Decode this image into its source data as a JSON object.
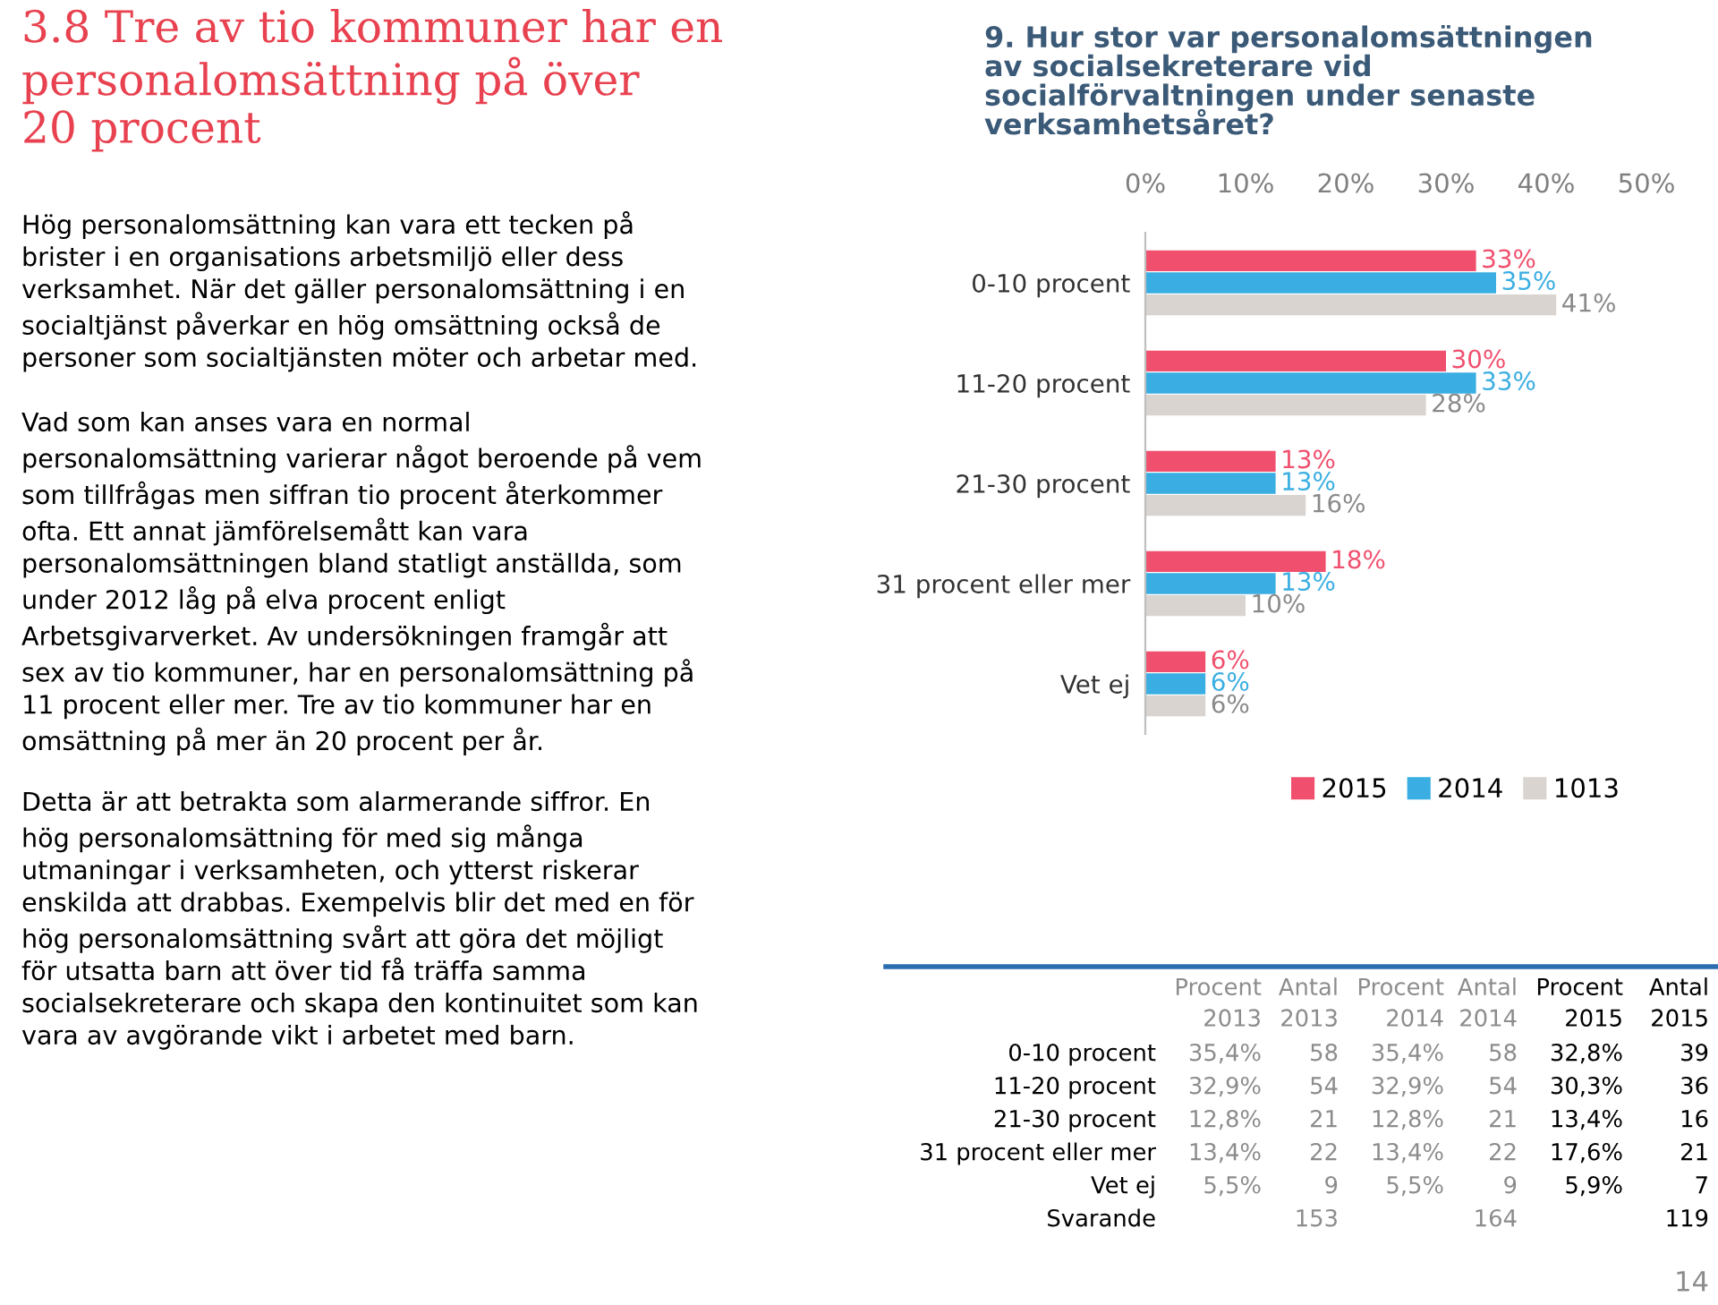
{
  "chart_data": [
    {
      "type": "other",
      "title": "3.8 Tre av tio kommuner har en\npersonalomsättning på över\n20 procent",
      "annotations": [
        "Hög personalomsättning kan vara ett tecken på\nbrister i en organisations arbetsmiljö eller dess\nverksamhet. När det gäller personalomsättning i en\nsocialtjänst påverkar en hög omsättning också de\npersoner som socialtjänsten möter och arbetar med.",
        "Vad som kan anses vara en normal\npersonalomsättning varierar något beroende på vem\nsom tillfrågas men siffran tio procent återkommer\nofta. Ett annat jämförelsemått kan vara\npersonalomsättningen bland statligt anställda, som\nunder 2012 låg på elva procent enligt\nArbetsgivarverket. Av undersökningen framgår att\nsex av tio kommuner, har en personalomsättning på\n11 procent eller mer. Tre av tio kommuner har en\nomsättning på mer än 20 procent per år.",
        "Detta är att betrakta som alarmerande siffror. En\nhög personalomsättning för med sig många\nutmaningar i verksamheten, och ytterst riskerar\nenskilda att drabbas. Exempelvis blir det med en för\nhög personalomsättning svårt att göra det möjligt\nför utsatta barn att över tid få träffa samma\nsocialsekreterare och skapa den kontinuitet som kan\nvara av avgörande vikt i arbetet med barn."
      ]
    },
    {
      "type": "bar",
      "orientation": "horizontal",
      "title": "9. Hur stor var personalomsättningen\nav socialsekreterare vid\nsocialförvaltningen under senaste\nverksamhetsåret?",
      "categories": [
        "0-10 procent",
        "11-20 procent",
        "21-30 procent",
        "31 procent eller mer",
        "Vet ej"
      ],
      "series": [
        {
          "name": "2015",
          "color": "#f0506e",
          "values": [
            33,
            30,
            13,
            18,
            6
          ],
          "value_labels": [
            "33%",
            "30%",
            "13%",
            "18%",
            "6%"
          ]
        },
        {
          "name": "2014",
          "color": "#3aaee2",
          "values": [
            35,
            33,
            13,
            13,
            6
          ],
          "value_labels": [
            "35%",
            "33%",
            "13%",
            "13%",
            "6%"
          ]
        },
        {
          "name": "1013",
          "color": "#d9d4cf",
          "values": [
            41,
            28,
            16,
            10,
            6
          ],
          "value_labels": [
            "41%",
            "28%",
            "16%",
            "10%",
            "6%"
          ]
        }
      ],
      "xlim": [
        0,
        50
      ],
      "xticks": [
        {
          "value": 0,
          "label": "0%"
        },
        {
          "value": 10,
          "label": "10%"
        },
        {
          "value": 20,
          "label": "20%"
        },
        {
          "value": 30,
          "label": "30%"
        },
        {
          "value": 40,
          "label": "40%"
        },
        {
          "value": 50,
          "label": "50%"
        }
      ],
      "legend": "bottom",
      "grid": false
    },
    {
      "type": "other",
      "categories": [
        "0-10 procent",
        "11-20 procent",
        "21-30 procent",
        "31 procent eller mer",
        "Vet ej",
        "Svarande"
      ],
      "series": [
        {
          "name": "Procent\n2013",
          "color": "#8c8c8c",
          "values": [
            35.4,
            32.9,
            12.8,
            13.4,
            5.5,
            null
          ],
          "value_labels": [
            "35,4%",
            "32,9%",
            "12,8%",
            "13,4%",
            "5,5%",
            null
          ]
        },
        {
          "name": "Antal\n2013",
          "color": "#8c8c8c",
          "values": [
            58,
            54,
            21,
            22,
            9,
            153
          ],
          "value_labels": [
            "58",
            "54",
            "21",
            "22",
            "9",
            "153"
          ]
        },
        {
          "name": "Procent\n2014",
          "color": "#8c8c8c",
          "values": [
            35.4,
            32.9,
            12.8,
            13.4,
            5.5,
            null
          ],
          "value_labels": [
            "35,4%",
            "32,9%",
            "12,8%",
            "13,4%",
            "5,5%",
            null
          ]
        },
        {
          "name": "Antal\n2014",
          "color": "#8c8c8c",
          "values": [
            58,
            54,
            21,
            22,
            9,
            164
          ],
          "value_labels": [
            "58",
            "54",
            "21",
            "22",
            "9",
            "164"
          ]
        },
        {
          "name": "Procent\n2015",
          "color": "#000000",
          "values": [
            32.8,
            30.3,
            13.4,
            17.6,
            5.9,
            null
          ],
          "value_labels": [
            "32,8%",
            "30,3%",
            "13,4%",
            "17,6%",
            "5,9%",
            null
          ]
        },
        {
          "name": "Antal\n2015",
          "color": "#000000",
          "values": [
            39,
            36,
            16,
            21,
            7,
            119
          ],
          "value_labels": [
            "39",
            "36",
            "16",
            "21",
            "7",
            "119"
          ]
        }
      ],
      "annotations": [
        "14"
      ]
    }
  ]
}
